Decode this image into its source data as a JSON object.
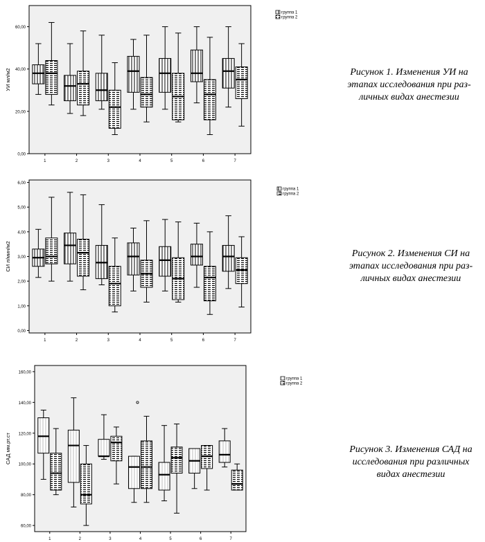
{
  "figures": [
    {
      "caption": [
        "Рисунок 1. Изменения УИ на",
        "этапах исследования при раз-",
        "личных видах анестезии"
      ]
    },
    {
      "caption": [
        "Рисунок 2. Изменения СИ на",
        "этапах исследования при раз-",
        "личных видах анестезии"
      ]
    },
    {
      "caption": [
        "Рисунок 3. Изменения САД на",
        "исследования при различных",
        "видах анестезии"
      ]
    }
  ],
  "chart_data": [
    {
      "type": "boxplot",
      "ylabel": "УИ мл/м2",
      "ylim": [
        0,
        70
      ],
      "yticks": [
        "0,00",
        "20,00",
        "40,00",
        "60,00"
      ],
      "ytick_values": [
        0,
        20,
        40,
        60
      ],
      "categories": [
        "1",
        "2",
        "3",
        "4",
        "5",
        "6",
        "7"
      ],
      "legend": {
        "position": "outside-top-right",
        "entries": [
          "группа 1",
          "группа 2"
        ]
      },
      "background": "#f0f0f0",
      "series": [
        {
          "name": "группа 1",
          "pattern": "vertical-lines",
          "boxes": [
            {
              "min": 28,
              "q1": 33,
              "median": 38,
              "q3": 42,
              "max": 52
            },
            {
              "min": 19,
              "q1": 25,
              "median": 32,
              "q3": 37,
              "max": 52
            },
            {
              "min": 21,
              "q1": 25,
              "median": 30,
              "q3": 38,
              "max": 56
            },
            {
              "min": 21,
              "q1": 29,
              "median": 39,
              "q3": 46,
              "max": 54
            },
            {
              "min": 21,
              "q1": 29,
              "median": 38,
              "q3": 45,
              "max": 60
            },
            {
              "min": 24,
              "q1": 34,
              "median": 38,
              "q3": 49,
              "max": 60
            },
            {
              "min": 22,
              "q1": 31,
              "median": 39,
              "q3": 45,
              "max": 60
            }
          ]
        },
        {
          "name": "группа 2",
          "pattern": "horizontal-dashes",
          "boxes": [
            {
              "min": 23,
              "q1": 28,
              "median": 38,
              "q3": 44,
              "max": 62
            },
            {
              "min": 18,
              "q1": 23,
              "median": 33,
              "q3": 39,
              "max": 58
            },
            {
              "min": 9,
              "q1": 12,
              "median": 22,
              "q3": 30,
              "max": 43
            },
            {
              "min": 15,
              "q1": 22,
              "median": 28,
              "q3": 36,
              "max": 56
            },
            {
              "min": 15,
              "q1": 16,
              "median": 27,
              "q3": 38,
              "max": 57
            },
            {
              "min": 9,
              "q1": 16,
              "median": 28,
              "q3": 35,
              "max": 55
            },
            {
              "min": 13,
              "q1": 26,
              "median": 35,
              "q3": 41,
              "max": 52
            }
          ]
        }
      ]
    },
    {
      "type": "boxplot",
      "ylabel": "СИ л/мин/м2",
      "ylim": [
        -0.1,
        6.1
      ],
      "yticks": [
        "0,00",
        "1,00",
        "2,00",
        "3,00",
        "4,00",
        "5,00",
        "6,00"
      ],
      "ytick_values": [
        0,
        1,
        2,
        3,
        4,
        5,
        6
      ],
      "categories": [
        "1",
        "2",
        "3",
        "4",
        "5",
        "6",
        "7"
      ],
      "legend": {
        "position": "outside-top-right",
        "entries": [
          "группа 1",
          "группа 2"
        ]
      },
      "background": "#f0f0f0",
      "series": [
        {
          "name": "группа 1",
          "pattern": "vertical-lines",
          "boxes": [
            {
              "min": 2.15,
              "q1": 2.6,
              "median": 2.95,
              "q3": 3.3,
              "max": 4.1
            },
            {
              "min": 2.0,
              "q1": 2.7,
              "median": 3.45,
              "q3": 3.95,
              "max": 5.6
            },
            {
              "min": 1.85,
              "q1": 2.1,
              "median": 2.75,
              "q3": 3.45,
              "max": 5.1
            },
            {
              "min": 1.6,
              "q1": 2.25,
              "median": 3.0,
              "q3": 3.55,
              "max": 4.15
            },
            {
              "min": 1.6,
              "q1": 2.2,
              "median": 2.85,
              "q3": 3.4,
              "max": 4.5
            },
            {
              "min": 1.75,
              "q1": 2.65,
              "median": 3.0,
              "q3": 3.5,
              "max": 4.35
            },
            {
              "min": 1.7,
              "q1": 2.4,
              "median": 3.0,
              "q3": 3.45,
              "max": 4.65
            }
          ]
        },
        {
          "name": "группа 2",
          "pattern": "horizontal-dashes",
          "boxes": [
            {
              "min": 2.0,
              "q1": 2.7,
              "median": 3.0,
              "q3": 3.75,
              "max": 5.4
            },
            {
              "min": 1.65,
              "q1": 2.2,
              "median": 3.15,
              "q3": 3.7,
              "max": 5.5
            },
            {
              "min": 0.75,
              "q1": 1.0,
              "median": 1.9,
              "q3": 2.6,
              "max": 3.75
            },
            {
              "min": 1.15,
              "q1": 1.75,
              "median": 2.3,
              "q3": 2.85,
              "max": 4.45
            },
            {
              "min": 1.15,
              "q1": 1.25,
              "median": 2.1,
              "q3": 2.95,
              "max": 4.4
            },
            {
              "min": 0.65,
              "q1": 1.2,
              "median": 2.15,
              "q3": 2.6,
              "max": 4.0
            },
            {
              "min": 0.95,
              "q1": 1.9,
              "median": 2.45,
              "q3": 2.95,
              "max": 3.8
            }
          ]
        }
      ]
    },
    {
      "type": "boxplot",
      "ylabel": "САД мм.рт.ст",
      "ylim": [
        56,
        164
      ],
      "yticks": [
        "60,00",
        "80,00",
        "100,00",
        "120,00",
        "140,00",
        "160,00"
      ],
      "ytick_values": [
        60,
        80,
        100,
        120,
        140,
        160
      ],
      "categories": [
        "1",
        "2",
        "3",
        "4",
        "5",
        "6",
        "7"
      ],
      "legend": {
        "position": "outside-top-right",
        "entries": [
          "группа 1",
          "группа 2"
        ]
      },
      "background": "#f0f0f0",
      "series": [
        {
          "name": "группа 1",
          "pattern": "light-vertical-lines",
          "boxes": [
            {
              "min": 90,
              "q1": 107,
              "median": 118,
              "q3": 130,
              "max": 135
            },
            {
              "min": 72,
              "q1": 88,
              "median": 112,
              "q3": 122,
              "max": 143
            },
            {
              "min": 103,
              "q1": 105,
              "median": 105,
              "q3": 116,
              "max": 132
            },
            {
              "min": 75,
              "q1": 84,
              "median": 98,
              "q3": 105,
              "max": 105
            },
            {
              "min": 76,
              "q1": 83,
              "median": 93,
              "q3": 101,
              "max": 125
            },
            {
              "min": 84,
              "q1": 94,
              "median": 102,
              "q3": 110,
              "max": 110
            },
            {
              "min": 98,
              "q1": 101,
              "median": 106,
              "q3": 115,
              "max": 123
            }
          ]
        },
        {
          "name": "группа 2",
          "pattern": "horizontal-dashes",
          "boxes": [
            {
              "min": 80,
              "q1": 83,
              "median": 94,
              "q3": 107,
              "max": 123
            },
            {
              "min": 60,
              "q1": 74,
              "median": 80,
              "q3": 100,
              "max": 112
            },
            {
              "min": 87,
              "q1": 102,
              "median": 114,
              "q3": 118,
              "max": 124
            },
            {
              "min": 75,
              "q1": 84,
              "median": 98,
              "q3": 115,
              "max": 131
            },
            {
              "min": 68,
              "q1": 94,
              "median": 104,
              "q3": 111,
              "max": 126
            },
            {
              "min": 83,
              "q1": 97,
              "median": 105,
              "q3": 112,
              "max": 112
            },
            {
              "min": 83,
              "q1": 83,
              "median": 87,
              "q3": 96,
              "max": 100
            }
          ]
        }
      ],
      "outliers": [
        {
          "series": "группа 2",
          "category": "4",
          "value": 140
        }
      ]
    }
  ]
}
